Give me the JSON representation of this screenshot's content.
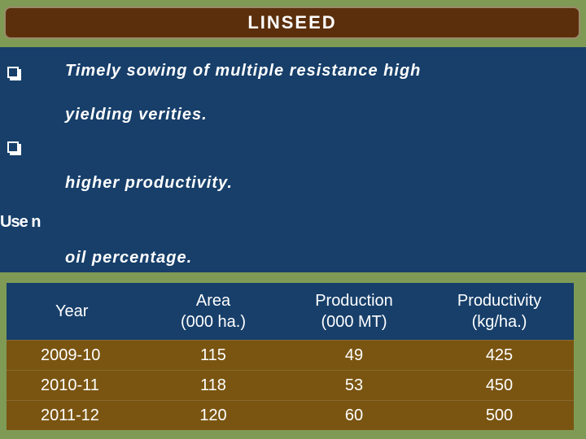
{
  "title": "LINSEED",
  "bullets": [
    {
      "lines": [
        "Timely sowing of multiple resistance high",
        "yielding verities."
      ]
    },
    {
      "lines": [
        "",
        "higher productivity."
      ]
    },
    {
      "lines": [
        "",
        "oil percentage."
      ]
    }
  ],
  "overlap_text": "Use n",
  "table": {
    "headers": [
      {
        "line1": "Year",
        "line2": ""
      },
      {
        "line1": "Area",
        "line2": "(000 ha.)"
      },
      {
        "line1": "Production",
        "line2": "(000 MT)"
      },
      {
        "line1": "Productivity",
        "line2": "(kg/ha.)"
      }
    ],
    "rows": [
      [
        "2009-10",
        "115",
        "49",
        "425"
      ],
      [
        "2010-11",
        "118",
        "53",
        "450"
      ],
      [
        "2011-12",
        "120",
        "60",
        "500"
      ]
    ]
  }
}
